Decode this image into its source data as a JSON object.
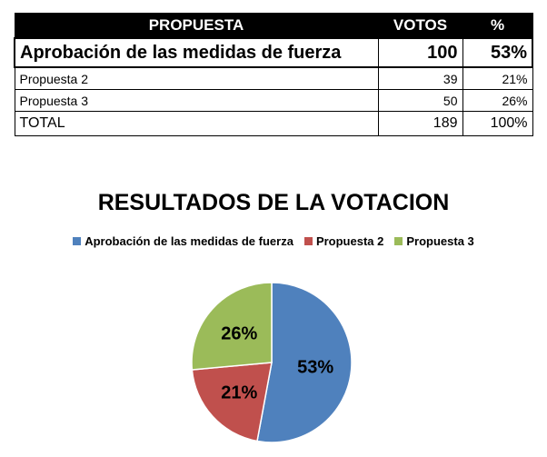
{
  "table": {
    "headers": [
      "PROPUESTA",
      "VOTOS",
      "%"
    ],
    "rows": [
      {
        "propuesta": "Aprobación de las medidas de fuerza",
        "votos": "100",
        "pct": "53%"
      },
      {
        "propuesta": "Propuesta 2",
        "votos": "39",
        "pct": "21%"
      },
      {
        "propuesta": "Propuesta 3",
        "votos": "50",
        "pct": "26%"
      }
    ],
    "total": {
      "label": "TOTAL",
      "votos": "189",
      "pct": "100%"
    }
  },
  "chart_data": {
    "type": "pie",
    "title": "RESULTADOS DE LA VOTACION",
    "legend_position": "top",
    "categories": [
      "Aprobación de las medidas de fuerza",
      "Propuesta 2",
      "Propuesta 3"
    ],
    "values": [
      100,
      39,
      50
    ],
    "labels": [
      "53%",
      "21%",
      "26%"
    ],
    "colors": [
      "#4F81BD",
      "#C0504D",
      "#9BBB59"
    ]
  }
}
